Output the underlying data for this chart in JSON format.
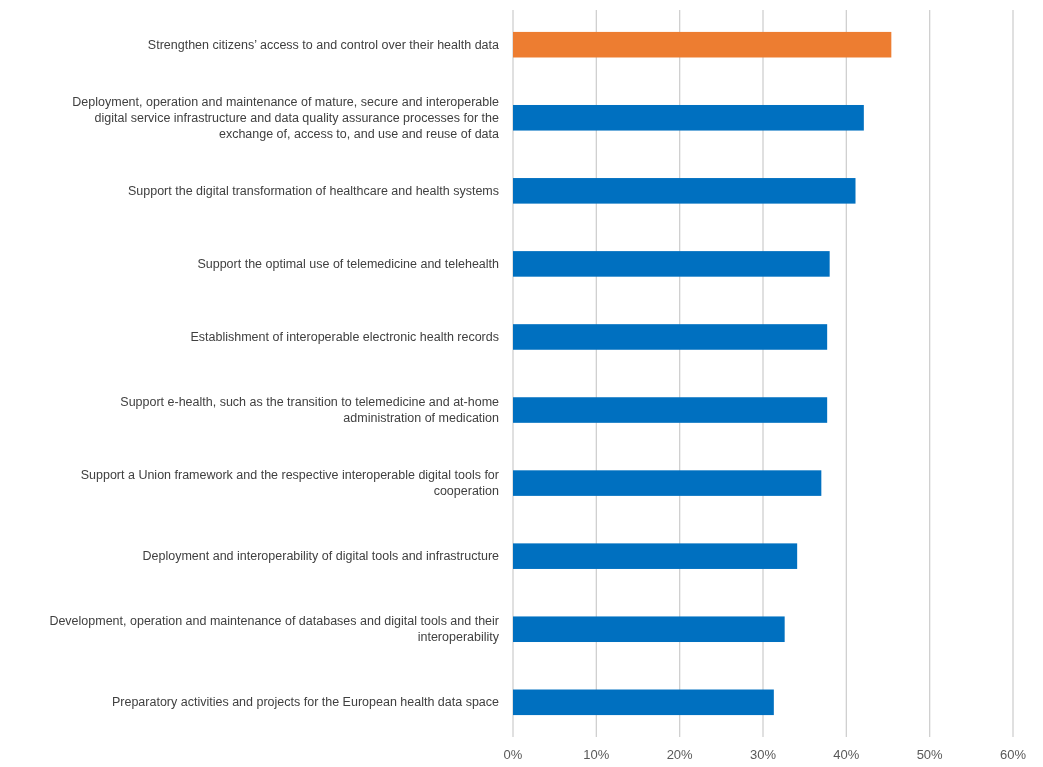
{
  "chart_data": {
    "type": "bar",
    "orientation": "horizontal",
    "categories": [
      "Strengthen citizens’ access to and control over their health data",
      "Deployment, operation and maintenance of mature, secure and interoperable digital service infrastructure and data quality assurance processes for the exchange of, access to, and use and reuse of data",
      "Support the digital transformation of healthcare and health systems",
      "Support the optimal use of telemedicine and telehealth",
      "Establishment of interoperable electronic health records",
      "Support e-health, such as the transition to telemedicine and at-home administration of medication",
      "Support a Union framework and the respective interoperable digital tools for cooperation",
      "Deployment and interoperability of digital tools and infrastructure",
      "Development, operation and maintenance of databases and digital tools and their interoperability",
      "Preparatory activities and projects for the European health data space"
    ],
    "values": [
      45.4,
      42.1,
      41.1,
      38.0,
      37.7,
      37.7,
      37.0,
      34.1,
      32.6,
      31.3
    ],
    "colors": [
      "#ed7d31",
      "#0070c0",
      "#0070c0",
      "#0070c0",
      "#0070c0",
      "#0070c0",
      "#0070c0",
      "#0070c0",
      "#0070c0",
      "#0070c0"
    ],
    "xlim": [
      0,
      60
    ],
    "xticks": [
      {
        "value": 0,
        "label": "0%"
      },
      {
        "value": 10,
        "label": "10%"
      },
      {
        "value": 20,
        "label": "20%"
      },
      {
        "value": 30,
        "label": "30%"
      },
      {
        "value": 40,
        "label": "40%"
      },
      {
        "value": 50,
        "label": "50%"
      },
      {
        "value": 60,
        "label": "60%"
      }
    ],
    "grid": "x"
  }
}
